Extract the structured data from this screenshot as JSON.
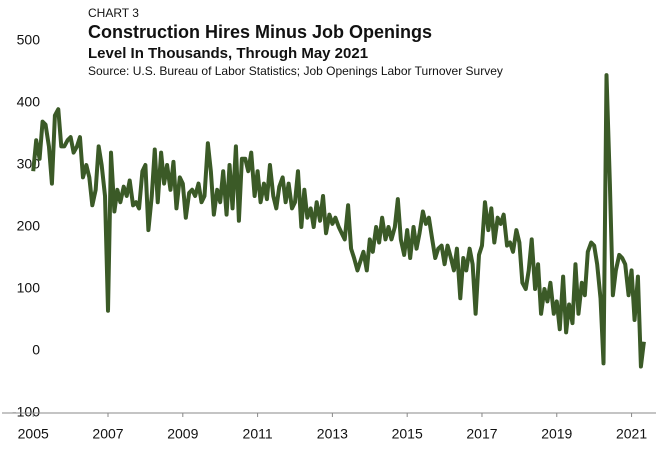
{
  "chart_data": {
    "type": "line",
    "label": "CHART 3",
    "title": "Construction Hires Minus Job Openings",
    "subtitle": "Level In Thousands, Through May 2021",
    "source": "Source: U.S. Bureau of Labor Statistics; Job Openings Labor Turnover Survey",
    "x": [
      2005.0,
      2005.08,
      2005.17,
      2005.25,
      2005.33,
      2005.42,
      2005.5,
      2005.58,
      2005.67,
      2005.75,
      2005.83,
      2005.92,
      2006.0,
      2006.08,
      2006.17,
      2006.25,
      2006.33,
      2006.42,
      2006.5,
      2006.58,
      2006.67,
      2006.75,
      2006.83,
      2006.92,
      2007.0,
      2007.08,
      2007.17,
      2007.25,
      2007.33,
      2007.42,
      2007.5,
      2007.58,
      2007.67,
      2007.75,
      2007.83,
      2007.92,
      2008.0,
      2008.08,
      2008.17,
      2008.25,
      2008.33,
      2008.42,
      2008.5,
      2008.58,
      2008.67,
      2008.75,
      2008.83,
      2008.92,
      2009.0,
      2009.08,
      2009.17,
      2009.25,
      2009.33,
      2009.42,
      2009.5,
      2009.58,
      2009.67,
      2009.75,
      2009.83,
      2009.92,
      2010.0,
      2010.08,
      2010.17,
      2010.25,
      2010.33,
      2010.42,
      2010.5,
      2010.58,
      2010.67,
      2010.75,
      2010.83,
      2010.92,
      2011.0,
      2011.08,
      2011.17,
      2011.25,
      2011.33,
      2011.42,
      2011.5,
      2011.58,
      2011.67,
      2011.75,
      2011.83,
      2011.92,
      2012.0,
      2012.08,
      2012.17,
      2012.25,
      2012.33,
      2012.42,
      2012.5,
      2012.58,
      2012.67,
      2012.75,
      2012.83,
      2012.92,
      2013.0,
      2013.08,
      2013.17,
      2013.25,
      2013.33,
      2013.42,
      2013.5,
      2013.58,
      2013.67,
      2013.75,
      2013.83,
      2013.92,
      2014.0,
      2014.08,
      2014.17,
      2014.25,
      2014.33,
      2014.42,
      2014.5,
      2014.58,
      2014.67,
      2014.75,
      2014.83,
      2014.92,
      2015.0,
      2015.08,
      2015.17,
      2015.25,
      2015.33,
      2015.42,
      2015.5,
      2015.58,
      2015.67,
      2015.75,
      2015.83,
      2015.92,
      2016.0,
      2016.08,
      2016.17,
      2016.25,
      2016.33,
      2016.42,
      2016.5,
      2016.58,
      2016.67,
      2016.75,
      2016.83,
      2016.92,
      2017.0,
      2017.08,
      2017.17,
      2017.25,
      2017.33,
      2017.42,
      2017.5,
      2017.58,
      2017.67,
      2017.75,
      2017.83,
      2017.92,
      2018.0,
      2018.08,
      2018.17,
      2018.25,
      2018.33,
      2018.42,
      2018.5,
      2018.58,
      2018.67,
      2018.75,
      2018.83,
      2018.92,
      2019.0,
      2019.08,
      2019.17,
      2019.25,
      2019.33,
      2019.42,
      2019.5,
      2019.58,
      2019.67,
      2019.75,
      2019.83,
      2019.92,
      2020.0,
      2020.08,
      2020.17,
      2020.25,
      2020.33,
      2020.42,
      2020.5,
      2020.58,
      2020.67,
      2020.75,
      2020.83,
      2020.92,
      2021.0,
      2021.08,
      2021.17,
      2021.25,
      2021.33
    ],
    "series": [
      {
        "color": "#3b5a27",
        "values": [
          290,
          340,
          310,
          370,
          365,
          330,
          270,
          380,
          390,
          330,
          330,
          340,
          345,
          320,
          330,
          345,
          280,
          300,
          280,
          235,
          260,
          330,
          300,
          250,
          65,
          320,
          225,
          260,
          240,
          265,
          250,
          275,
          235,
          240,
          230,
          290,
          300,
          195,
          250,
          325,
          240,
          320,
          270,
          300,
          260,
          305,
          230,
          280,
          270,
          215,
          255,
          260,
          250,
          270,
          240,
          250,
          335,
          290,
          220,
          260,
          240,
          290,
          220,
          300,
          230,
          330,
          210,
          310,
          310,
          290,
          320,
          250,
          290,
          240,
          270,
          245,
          300,
          250,
          230,
          265,
          280,
          240,
          270,
          230,
          240,
          290,
          200,
          260,
          215,
          230,
          200,
          240,
          210,
          250,
          190,
          220,
          205,
          215,
          200,
          190,
          180,
          235,
          165,
          150,
          130,
          145,
          160,
          130,
          180,
          160,
          200,
          175,
          215,
          180,
          200,
          180,
          200,
          245,
          180,
          155,
          195,
          150,
          200,
          165,
          190,
          225,
          205,
          215,
          180,
          150,
          165,
          170,
          140,
          170,
          150,
          130,
          165,
          85,
          150,
          130,
          165,
          140,
          60,
          155,
          170,
          240,
          195,
          230,
          175,
          215,
          205,
          220,
          170,
          175,
          160,
          195,
          175,
          110,
          100,
          130,
          180,
          100,
          140,
          60,
          100,
          80,
          110,
          60,
          80,
          35,
          120,
          30,
          75,
          45,
          140,
          60,
          110,
          90,
          160,
          175,
          170,
          140,
          85,
          -20,
          445,
          270,
          90,
          130,
          155,
          150,
          140,
          90,
          130,
          50,
          120,
          -25,
          15
        ]
      }
    ],
    "xlim": [
      2004.7,
      2021.6
    ],
    "xticks": [
      2005,
      2007,
      2009,
      2011,
      2013,
      2015,
      2017,
      2019,
      2021
    ],
    "ylim": [
      -100,
      500
    ],
    "yticks": [
      -100,
      0,
      100,
      200,
      300,
      400,
      500
    ]
  }
}
